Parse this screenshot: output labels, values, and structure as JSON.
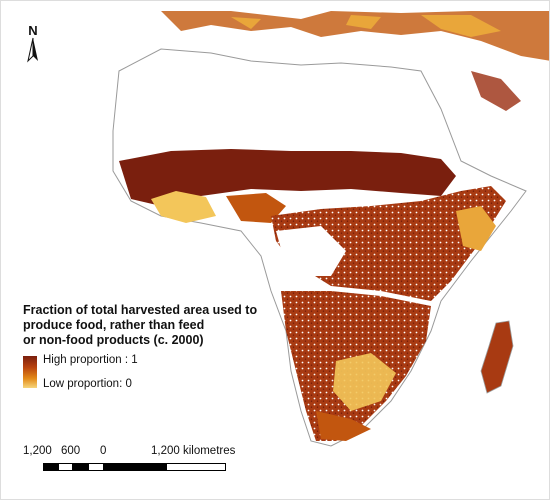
{
  "map": {
    "north_arrow_label": "N",
    "legend": {
      "title": "Fraction of total harvested area used to\nproduce food, rather than feed\nor non-food products (c. 2000)",
      "high_label": "High proportion : 1",
      "low_label": "Low proportion: 0",
      "high_color": "#7a1f0e",
      "low_color": "#f6d57b"
    },
    "scale_bar": {
      "labels": [
        "1,200",
        "600",
        "0",
        "1,200 kilometres"
      ]
    },
    "colors": {
      "background": "#ffffff",
      "coastline": "#9a9a9a",
      "dark_red": "#7a1f0e",
      "mid_orange": "#c2560f",
      "light_yellow": "#f3c65a"
    }
  }
}
